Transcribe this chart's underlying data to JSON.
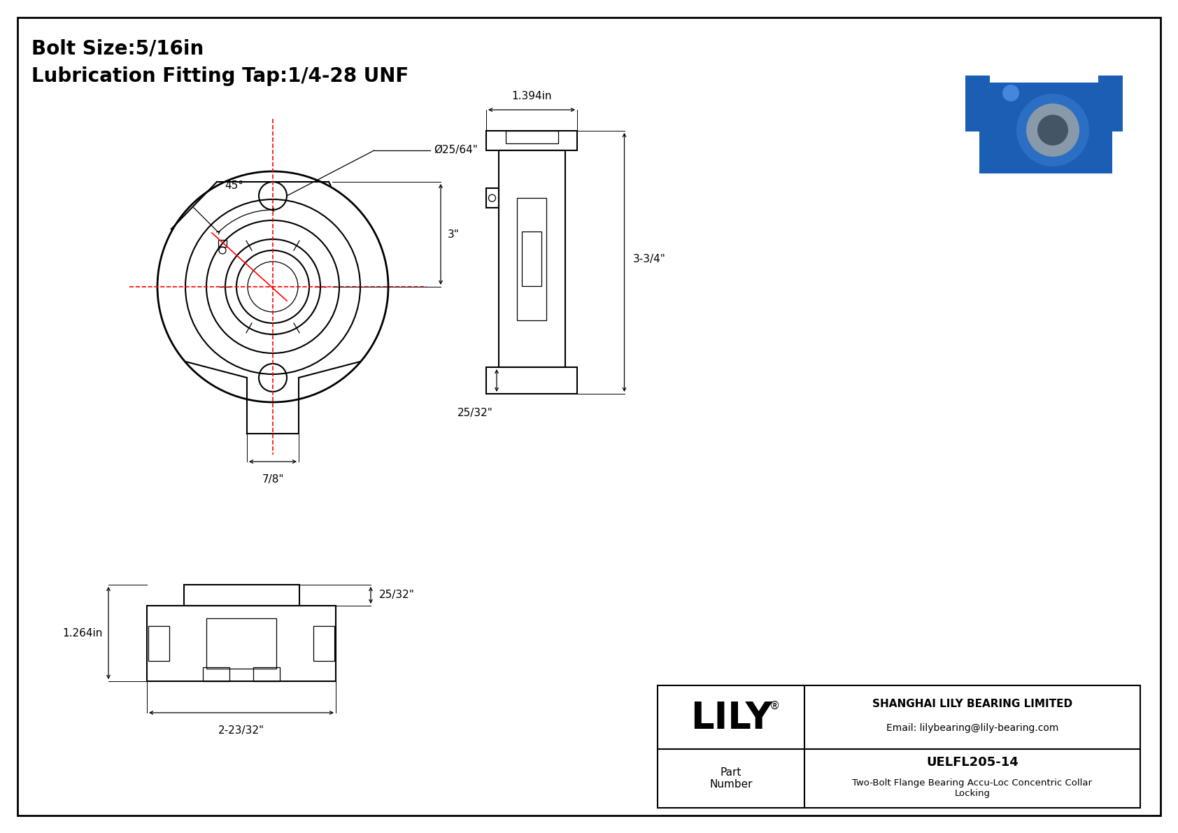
{
  "bg_color": "#ffffff",
  "line_color": "#000000",
  "red_line_color": "#ff0000",
  "gray_line_color": "#888888",
  "title_text1": "Bolt Size:5/16in",
  "title_text2": "Lubrication Fitting Tap:1/4-28 UNF",
  "company_name": "SHANGHAI LILY BEARING LIMITED",
  "company_email": "Email: lilybearing@lily-bearing.com",
  "part_number_label": "Part\nNumber",
  "part_number": "UELFL205-14",
  "part_desc": "Two-Bolt Flange Bearing Accu-Loc Concentric Collar\nLocking",
  "lily_logo": "LILY",
  "dim_45deg": "45°",
  "dim_hole_dia": "Ø25/64\"",
  "dim_3in": "3\"",
  "dim_7_8": "7/8\"",
  "dim_1_394": "1.394in",
  "dim_3_3_4": "3-3/4\"",
  "dim_25_32_side": "25/32\"",
  "dim_25_32_bottom": "25/32\"",
  "dim_1_264": "1.264in",
  "dim_2_23_32": "2-23/32\""
}
